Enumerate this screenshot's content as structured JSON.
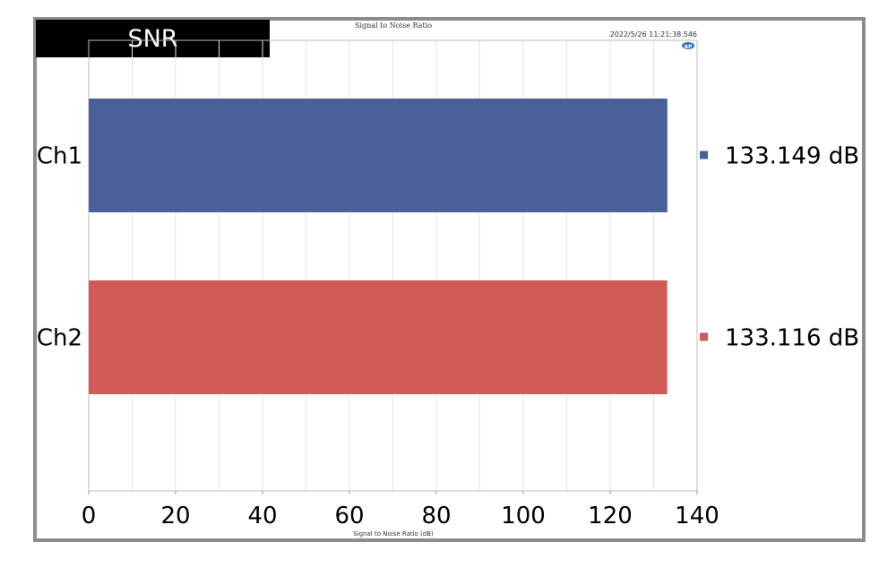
{
  "banner": {
    "label": "SNR"
  },
  "chart_data": {
    "type": "bar",
    "orientation": "horizontal",
    "title": "Signal to Noise Ratio",
    "timestamp": "2022/5/26 11:21:38.546",
    "logo_text": "AP",
    "xlabel": "Signal to Noise Ratio (dB)",
    "ylabel": "",
    "xlim": [
      0,
      140
    ],
    "xticks": [
      "0",
      "20",
      "40",
      "60",
      "80",
      "100",
      "120",
      "140"
    ],
    "grid": true,
    "categories": [
      "Ch1",
      "Ch2"
    ],
    "values": [
      133.149,
      133.116
    ],
    "value_labels": [
      "133.149 dB",
      "133.116 dB"
    ],
    "colors": [
      "#4a6098",
      "#d05a55"
    ],
    "legend": "right"
  }
}
